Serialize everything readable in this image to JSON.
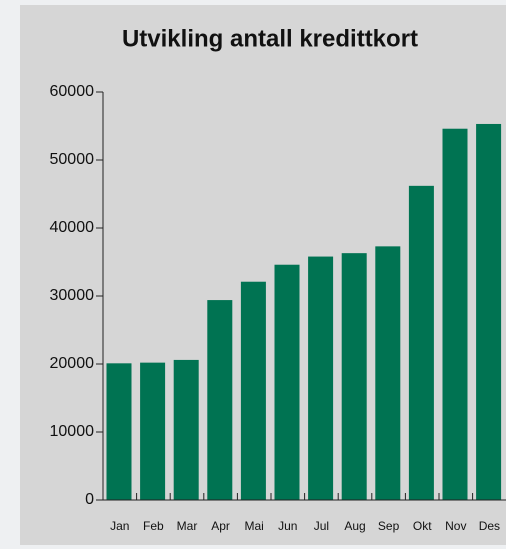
{
  "chart_data": {
    "type": "bar",
    "title": "Utvikling antall kredittkort",
    "categories": [
      "Jan",
      "Feb",
      "Mar",
      "Apr",
      "Mai",
      "Jun",
      "Jul",
      "Aug",
      "Sep",
      "Okt",
      "Nov",
      "Des"
    ],
    "values": [
      20100,
      20200,
      20600,
      29400,
      32100,
      34600,
      35800,
      36300,
      37300,
      46200,
      54600,
      55300
    ],
    "color": "#007352",
    "ylim": [
      0,
      60000
    ],
    "yticks": [
      0,
      10000,
      20000,
      30000,
      40000,
      50000,
      60000
    ],
    "grid": false
  }
}
